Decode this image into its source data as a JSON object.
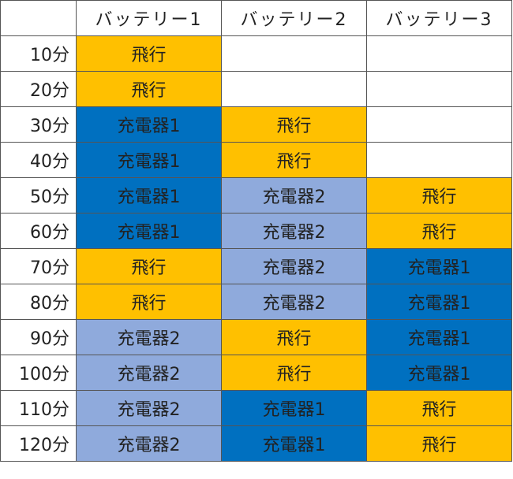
{
  "header": {
    "corner": "",
    "columns": [
      "バッテリー1",
      "バッテリー2",
      "バッテリー3"
    ]
  },
  "states": {
    "flight": "飛行",
    "ch1": "充電器1",
    "ch2": "充電器2"
  },
  "colors": {
    "flight": "#ffc000",
    "charger1": "#0070c0",
    "charger2": "#8faadc",
    "empty": "#ffffff",
    "border": "#555555"
  },
  "rows": [
    {
      "time": "10分",
      "cells": [
        "飛行",
        "",
        ""
      ]
    },
    {
      "time": "20分",
      "cells": [
        "飛行",
        "",
        ""
      ]
    },
    {
      "time": "30分",
      "cells": [
        "充電器1",
        "飛行",
        ""
      ]
    },
    {
      "time": "40分",
      "cells": [
        "充電器1",
        "飛行",
        ""
      ]
    },
    {
      "time": "50分",
      "cells": [
        "充電器1",
        "充電器2",
        "飛行"
      ]
    },
    {
      "time": "60分",
      "cells": [
        "充電器1",
        "充電器2",
        "飛行"
      ]
    },
    {
      "time": "70分",
      "cells": [
        "飛行",
        "充電器2",
        "充電器1"
      ]
    },
    {
      "time": "80分",
      "cells": [
        "飛行",
        "充電器2",
        "充電器1"
      ]
    },
    {
      "time": "90分",
      "cells": [
        "充電器2",
        "飛行",
        "充電器1"
      ]
    },
    {
      "time": "100分",
      "cells": [
        "充電器2",
        "飛行",
        "充電器1"
      ]
    },
    {
      "time": "110分",
      "cells": [
        "充電器2",
        "充電器1",
        "飛行"
      ]
    },
    {
      "time": "120分",
      "cells": [
        "充電器2",
        "充電器1",
        "飛行"
      ]
    }
  ]
}
